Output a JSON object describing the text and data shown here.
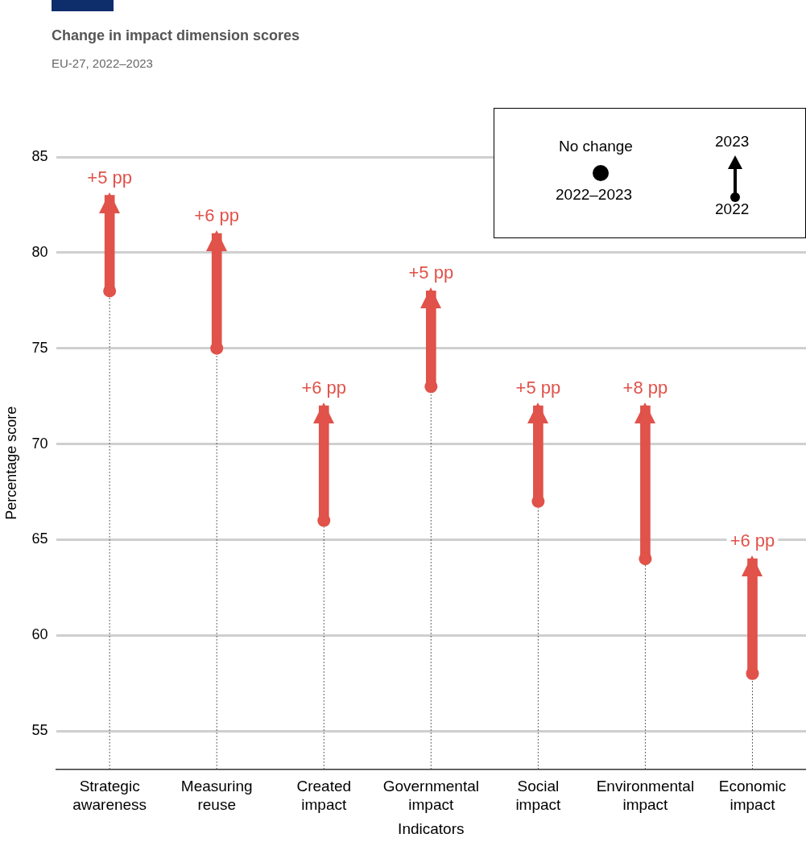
{
  "chart_data": {
    "type": "bar",
    "title": "Change in impact dimension scores",
    "subtitle": "EU-27, 2022–2023",
    "xlabel": "Indicators",
    "ylabel": "Percentage score",
    "categories": [
      "Strategic awareness",
      "Measuring reuse",
      "Created impact",
      "Governmental impact",
      "Social impact",
      "Environmental impact",
      "Economic impact"
    ],
    "base": [
      78,
      75,
      66,
      73,
      67,
      64,
      58
    ],
    "values": [
      5,
      6,
      6,
      5,
      5,
      8,
      6
    ],
    "value_labels": [
      "+5 pp",
      "+6 pp",
      "+6 pp",
      "+5 pp",
      "+5 pp",
      "+8 pp",
      "+6 pp"
    ],
    "color": "#e0524a",
    "marker": "circle",
    "ylim": [
      53,
      85
    ],
    "yticks": [
      55,
      60,
      65,
      70,
      75,
      80,
      85
    ],
    "grid": "y",
    "annotations": [
      "No change",
      "2022–2023",
      "2023",
      "2022"
    ]
  }
}
